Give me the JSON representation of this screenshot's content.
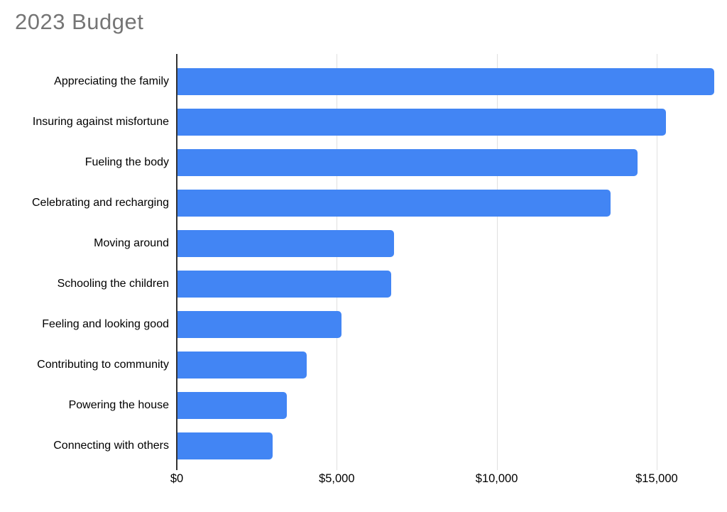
{
  "page": {
    "background": "#ffffff"
  },
  "chart_data": {
    "type": "bar",
    "orientation": "horizontal",
    "title": "2023 Budget",
    "categories": [
      "Appreciating the family",
      "Insuring against misfortune",
      "Fueling the body",
      "Celebrating and recharging",
      "Moving around",
      "Schooling the children",
      "Feeling and looking good",
      "Contributing to community",
      "Powering the house",
      "Connecting with others"
    ],
    "values": [
      16800,
      15300,
      14400,
      13550,
      6800,
      6700,
      5150,
      4070,
      3430,
      3000
    ],
    "xlabel": "",
    "ylabel": "",
    "xlim": [
      0,
      16800
    ],
    "x_ticks": [
      {
        "value": 0,
        "label": "$0"
      },
      {
        "value": 5000,
        "label": "$5,000"
      },
      {
        "value": 10000,
        "label": "$10,000"
      },
      {
        "value": 15000,
        "label": "$15,000"
      }
    ],
    "grid": true,
    "legend_position": "none",
    "colors": {
      "bar": "#4285f4",
      "title": "#757575",
      "gridline": "#e0e0e0",
      "baseline": "#333333",
      "label": "#000000"
    }
  }
}
